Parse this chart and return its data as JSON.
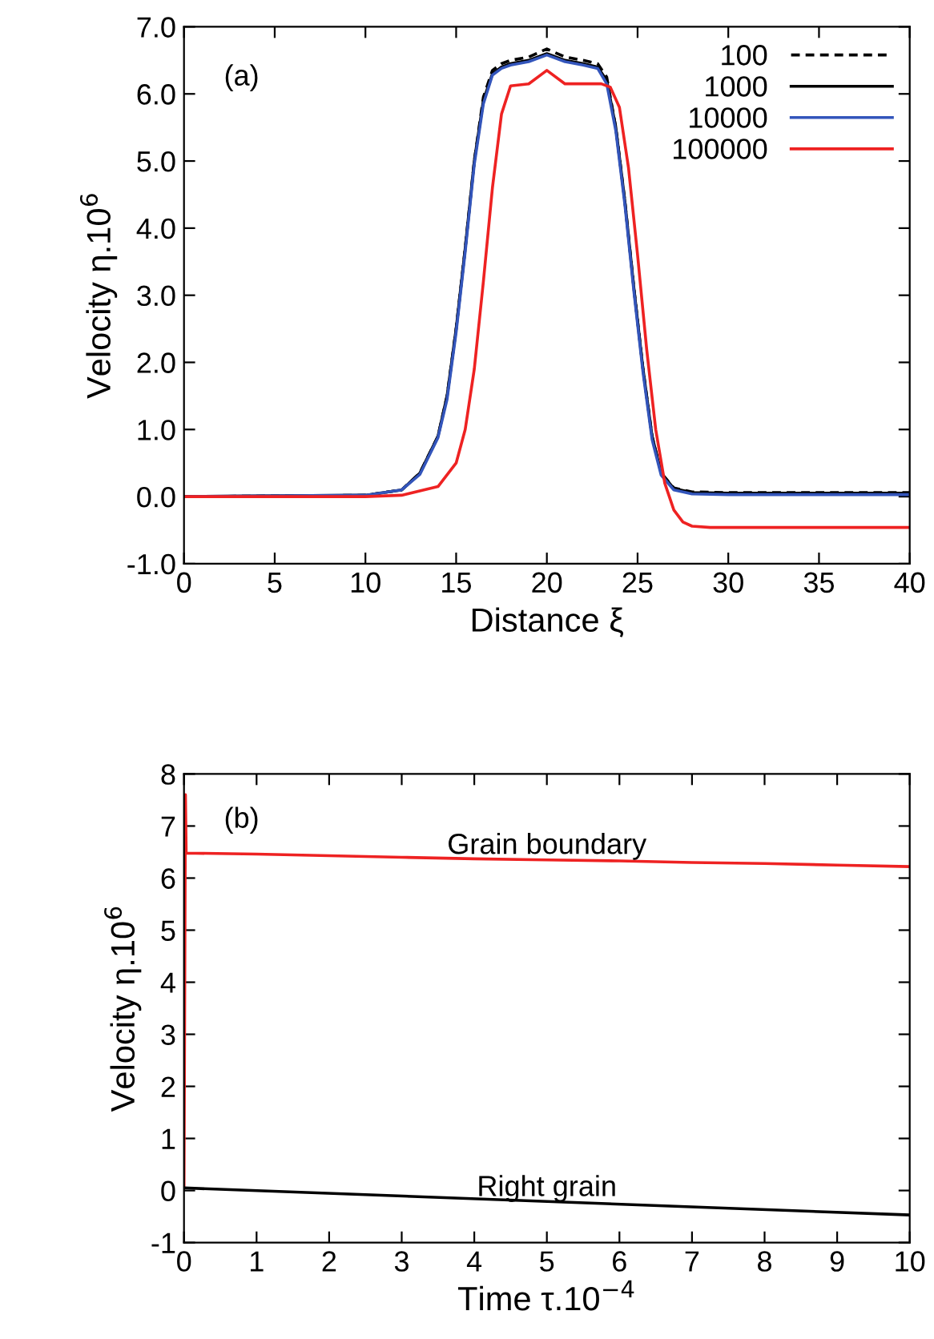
{
  "chart_data": [
    {
      "type": "line",
      "xlabel": "Distance ξ",
      "ylabel": "Velocity η.10$^{6}$",
      "annotations": [
        "(a)"
      ],
      "legend": "top right",
      "xlim": [
        0,
        40
      ],
      "ylim": [
        -1.0,
        7.0
      ],
      "xticks": [
        0,
        5,
        10,
        15,
        20,
        25,
        30,
        35,
        40
      ],
      "yticks": [
        {
          "value": -1.0,
          "label": "-1.0"
        },
        {
          "value": 0.0,
          "label": "0.0"
        },
        {
          "value": 1.0,
          "label": "1.0"
        },
        {
          "value": 2.0,
          "label": "2.0"
        },
        {
          "value": 3.0,
          "label": "3.0"
        },
        {
          "value": 4.0,
          "label": "4.0"
        },
        {
          "value": 5.0,
          "label": "5.0"
        },
        {
          "value": 6.0,
          "label": "6.0"
        },
        {
          "value": 7.0,
          "label": "7.0"
        }
      ],
      "series": [
        {
          "name": "100",
          "color": "#000000",
          "line_style": "dashed",
          "x": [
            0,
            10,
            12,
            13,
            14,
            14.5,
            15,
            15.5,
            16,
            16.5,
            17,
            17.5,
            18,
            19,
            20,
            21,
            22,
            22.8,
            23.3,
            23.8,
            24.3,
            24.8,
            25.3,
            25.8,
            26.3,
            27,
            28,
            30,
            40
          ],
          "values": [
            0,
            0.02,
            0.1,
            0.35,
            0.9,
            1.5,
            2.5,
            3.7,
            5.0,
            5.95,
            6.35,
            6.45,
            6.5,
            6.55,
            6.67,
            6.55,
            6.5,
            6.45,
            6.25,
            5.5,
            4.4,
            3.1,
            1.9,
            0.9,
            0.35,
            0.13,
            0.07,
            0.06,
            0.06
          ]
        },
        {
          "name": "1000",
          "color": "#000000",
          "line_style": "solid",
          "x": [
            0,
            10,
            12,
            13,
            14,
            14.5,
            15,
            15.5,
            16,
            16.5,
            17,
            17.5,
            18,
            19,
            20,
            21,
            22,
            22.8,
            23.3,
            23.8,
            24.3,
            24.8,
            25.3,
            25.8,
            26.3,
            27,
            28,
            30,
            40
          ],
          "values": [
            0,
            0.02,
            0.1,
            0.35,
            0.9,
            1.5,
            2.5,
            3.7,
            5.0,
            5.9,
            6.3,
            6.4,
            6.45,
            6.5,
            6.6,
            6.5,
            6.45,
            6.4,
            6.2,
            5.5,
            4.4,
            3.1,
            1.9,
            0.9,
            0.35,
            0.12,
            0.06,
            0.05,
            0.05
          ]
        },
        {
          "name": "10000",
          "color": "#3355bb",
          "line_style": "solid",
          "x": [
            0,
            10,
            12,
            13,
            14,
            14.5,
            15,
            15.5,
            16,
            16.5,
            17,
            17.5,
            18,
            19,
            20,
            21,
            22,
            22.8,
            23.3,
            23.8,
            24.3,
            24.8,
            25.3,
            25.8,
            26.3,
            27,
            28,
            30,
            40
          ],
          "values": [
            0,
            0.02,
            0.1,
            0.33,
            0.88,
            1.45,
            2.45,
            3.65,
            4.95,
            5.85,
            6.28,
            6.38,
            6.43,
            6.48,
            6.58,
            6.48,
            6.43,
            6.38,
            6.15,
            5.45,
            4.35,
            3.05,
            1.85,
            0.85,
            0.32,
            0.1,
            0.04,
            0.03,
            0.03
          ]
        },
        {
          "name": "100000",
          "color": "#ee2222",
          "line_style": "solid",
          "x": [
            0,
            10,
            12,
            14,
            15,
            15.5,
            16,
            16.5,
            17,
            17.5,
            18,
            19,
            20,
            21,
            22,
            23,
            23.5,
            24,
            24.5,
            25,
            25.5,
            26,
            26.5,
            27,
            27.5,
            28,
            29,
            30,
            40
          ],
          "values": [
            0,
            0,
            0.02,
            0.15,
            0.5,
            1.0,
            1.9,
            3.2,
            4.6,
            5.7,
            6.12,
            6.15,
            6.35,
            6.15,
            6.15,
            6.15,
            6.1,
            5.8,
            4.9,
            3.6,
            2.2,
            1.0,
            0.2,
            -0.2,
            -0.38,
            -0.44,
            -0.46,
            -0.46,
            -0.46
          ]
        }
      ]
    },
    {
      "type": "line",
      "xlabel": "Time τ.10$^{−4}$",
      "ylabel": "Velocity η.10$^{6}$",
      "xlim": [
        0,
        10
      ],
      "ylim": [
        -1,
        8
      ],
      "xticks": [
        0,
        1,
        2,
        3,
        4,
        5,
        6,
        7,
        8,
        9,
        10
      ],
      "yticks": [
        -1,
        0,
        1,
        2,
        3,
        4,
        5,
        6,
        7,
        8
      ],
      "annotations": [
        "(b)",
        {
          "text": "Grain boundary",
          "x": 5,
          "y": 6.35
        },
        {
          "text": "Right grain",
          "x": 5,
          "y": -0.22
        }
      ],
      "series": [
        {
          "color": "#ee2222",
          "line_style": "solid",
          "x": [
            0,
            0.02,
            0.03,
            1,
            2,
            3,
            4,
            5,
            6,
            7,
            8,
            9,
            10
          ],
          "values": [
            0.05,
            7.6,
            6.48,
            6.46,
            6.43,
            6.4,
            6.37,
            6.35,
            6.33,
            6.3,
            6.28,
            6.25,
            6.22
          ]
        },
        {
          "color": "#000000",
          "line_style": "solid",
          "x": [
            0,
            10
          ],
          "values": [
            0.05,
            -0.47
          ]
        }
      ]
    }
  ]
}
